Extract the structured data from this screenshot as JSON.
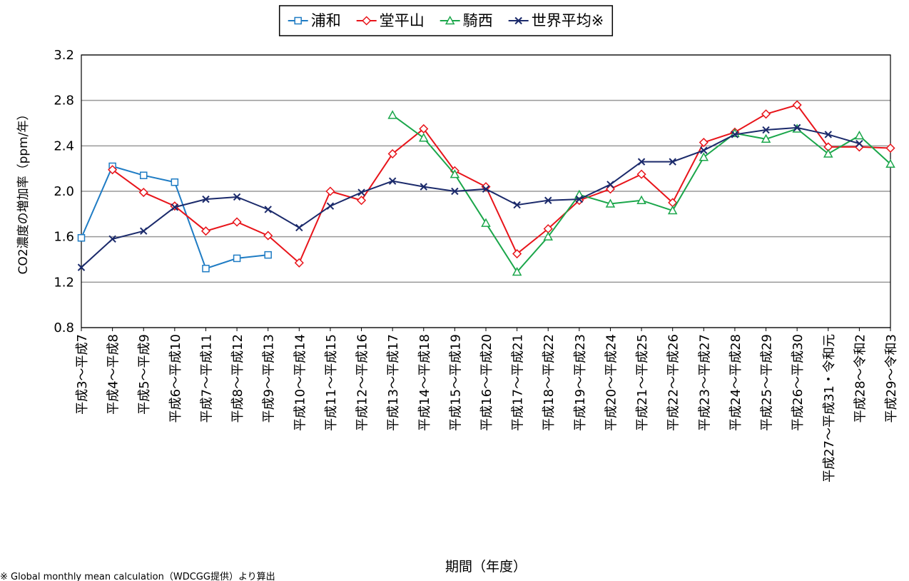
{
  "chart_data": {
    "type": "line",
    "y_label": "CO2濃度の増加率（ppm/年）",
    "x_label": "期間（年度）",
    "note": "※ Global monthly mean calculation（WDCGG提供）より算出",
    "categories": [
      "平成3～平成7",
      "平成4～平成8",
      "平成5～平成9",
      "平成6～平成10",
      "平成7～平成11",
      "平成8～平成12",
      "平成9～平成13",
      "平成10～平成14",
      "平成11～平成15",
      "平成12～平成16",
      "平成13～平成17",
      "平成14～平成18",
      "平成15～平成19",
      "平成16～平成20",
      "平成17～平成21",
      "平成18～平成22",
      "平成19～平成23",
      "平成20～平成24",
      "平成21～平成25",
      "平成22～平成26",
      "平成23～平成27",
      "平成24～平成28",
      "平成25～平成29",
      "平成26～平成30",
      "平成27～平成31・令和元",
      "平成28～令和2",
      "平成29～令和3"
    ],
    "series": [
      {
        "name": "浦和",
        "color": "#1f7cc4",
        "marker": "square",
        "values": [
          1.59,
          2.22,
          2.14,
          2.08,
          1.32,
          1.41,
          1.44,
          null,
          null,
          null,
          null,
          null,
          null,
          null,
          null,
          null,
          null,
          null,
          null,
          null,
          null,
          null,
          null,
          null,
          null,
          null,
          null
        ]
      },
      {
        "name": "堂平山",
        "color": "#e8141a",
        "marker": "diamond",
        "values": [
          null,
          2.19,
          1.99,
          1.87,
          1.65,
          1.73,
          1.61,
          1.37,
          2.0,
          1.92,
          2.33,
          2.55,
          2.18,
          2.04,
          1.45,
          1.67,
          1.92,
          2.02,
          2.15,
          1.9,
          2.43,
          2.52,
          2.68,
          2.76,
          2.39,
          2.39,
          2.38
        ]
      },
      {
        "name": "騎西",
        "color": "#1aa64a",
        "marker": "triangle",
        "values": [
          null,
          null,
          null,
          null,
          null,
          null,
          null,
          null,
          null,
          null,
          2.67,
          2.47,
          2.15,
          1.72,
          1.29,
          1.6,
          1.97,
          1.89,
          1.92,
          1.83,
          2.3,
          2.51,
          2.46,
          2.55,
          2.33,
          2.49,
          2.24
        ]
      },
      {
        "name": "世界平均※",
        "color": "#1b2a6b",
        "marker": "x",
        "values": [
          1.33,
          1.58,
          1.65,
          1.86,
          1.93,
          1.95,
          1.84,
          1.68,
          1.87,
          1.99,
          2.09,
          2.04,
          2.0,
          2.02,
          1.88,
          1.92,
          1.93,
          2.06,
          2.26,
          2.26,
          2.36,
          2.5,
          2.54,
          2.56,
          2.5,
          2.42,
          null
        ]
      }
    ],
    "ylim": [
      0.8,
      3.2
    ],
    "yticks": [
      {
        "value": 0.8,
        "label": "0.8"
      },
      {
        "value": 1.2,
        "label": "1.2"
      },
      {
        "value": 1.6,
        "label": "1.6"
      },
      {
        "value": 2.0,
        "label": "2.0"
      },
      {
        "value": 2.4,
        "label": "2.4"
      },
      {
        "value": 2.8,
        "label": "2.8"
      },
      {
        "value": 3.2,
        "label": "3.2"
      }
    ],
    "grid": true,
    "legend": "top"
  }
}
